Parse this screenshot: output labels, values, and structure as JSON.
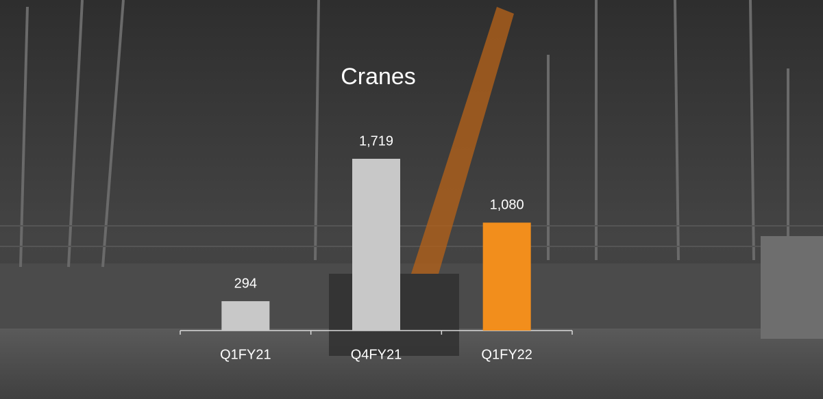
{
  "chart_data": {
    "type": "bar",
    "title": "Cranes",
    "categories": [
      "Q1FY21",
      "Q4FY21",
      "Q1FY22"
    ],
    "values": [
      294,
      1719,
      1080
    ],
    "value_labels": [
      "294",
      "1,719",
      "1,080"
    ],
    "colors": [
      "#c8c8c8",
      "#c8c8c8",
      "#f28e1c"
    ]
  }
}
